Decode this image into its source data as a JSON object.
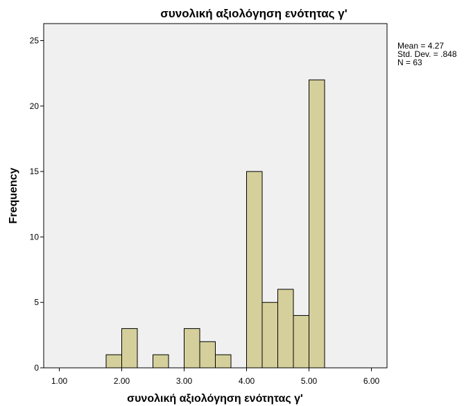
{
  "chart_data": {
    "type": "bar",
    "title": "συνολική αξιολόγηση ενότητας γ'",
    "xlabel": "συνολική αξιολόγηση ενότητας γ'",
    "ylabel": "Frequency",
    "xlim": [
      0.75,
      6.25
    ],
    "ylim": [
      0,
      26.3
    ],
    "xticks": [
      "1.00",
      "2.00",
      "3.00",
      "4.00",
      "5.00",
      "6.00"
    ],
    "xtick_values": [
      1,
      2,
      3,
      4,
      5,
      6
    ],
    "yticks": [
      "0",
      "5",
      "10",
      "15",
      "20",
      "25"
    ],
    "ytick_values": [
      0,
      5,
      10,
      15,
      20,
      25
    ],
    "bin_width": 0.25,
    "bins": [
      {
        "start": 1.75,
        "count": 1
      },
      {
        "start": 2.0,
        "count": 3
      },
      {
        "start": 2.5,
        "count": 1
      },
      {
        "start": 3.0,
        "count": 3
      },
      {
        "start": 3.25,
        "count": 2
      },
      {
        "start": 3.5,
        "count": 1
      },
      {
        "start": 4.0,
        "count": 15
      },
      {
        "start": 4.25,
        "count": 5
      },
      {
        "start": 4.5,
        "count": 6
      },
      {
        "start": 4.75,
        "count": 4
      },
      {
        "start": 5.0,
        "count": 22
      }
    ],
    "stats": [
      "Mean = 4.27",
      "Std. Dev. = .848",
      "N = 63"
    ],
    "bar_color": "#d5cf9b",
    "plot_bg": "#f0f0f0",
    "grid": false
  }
}
